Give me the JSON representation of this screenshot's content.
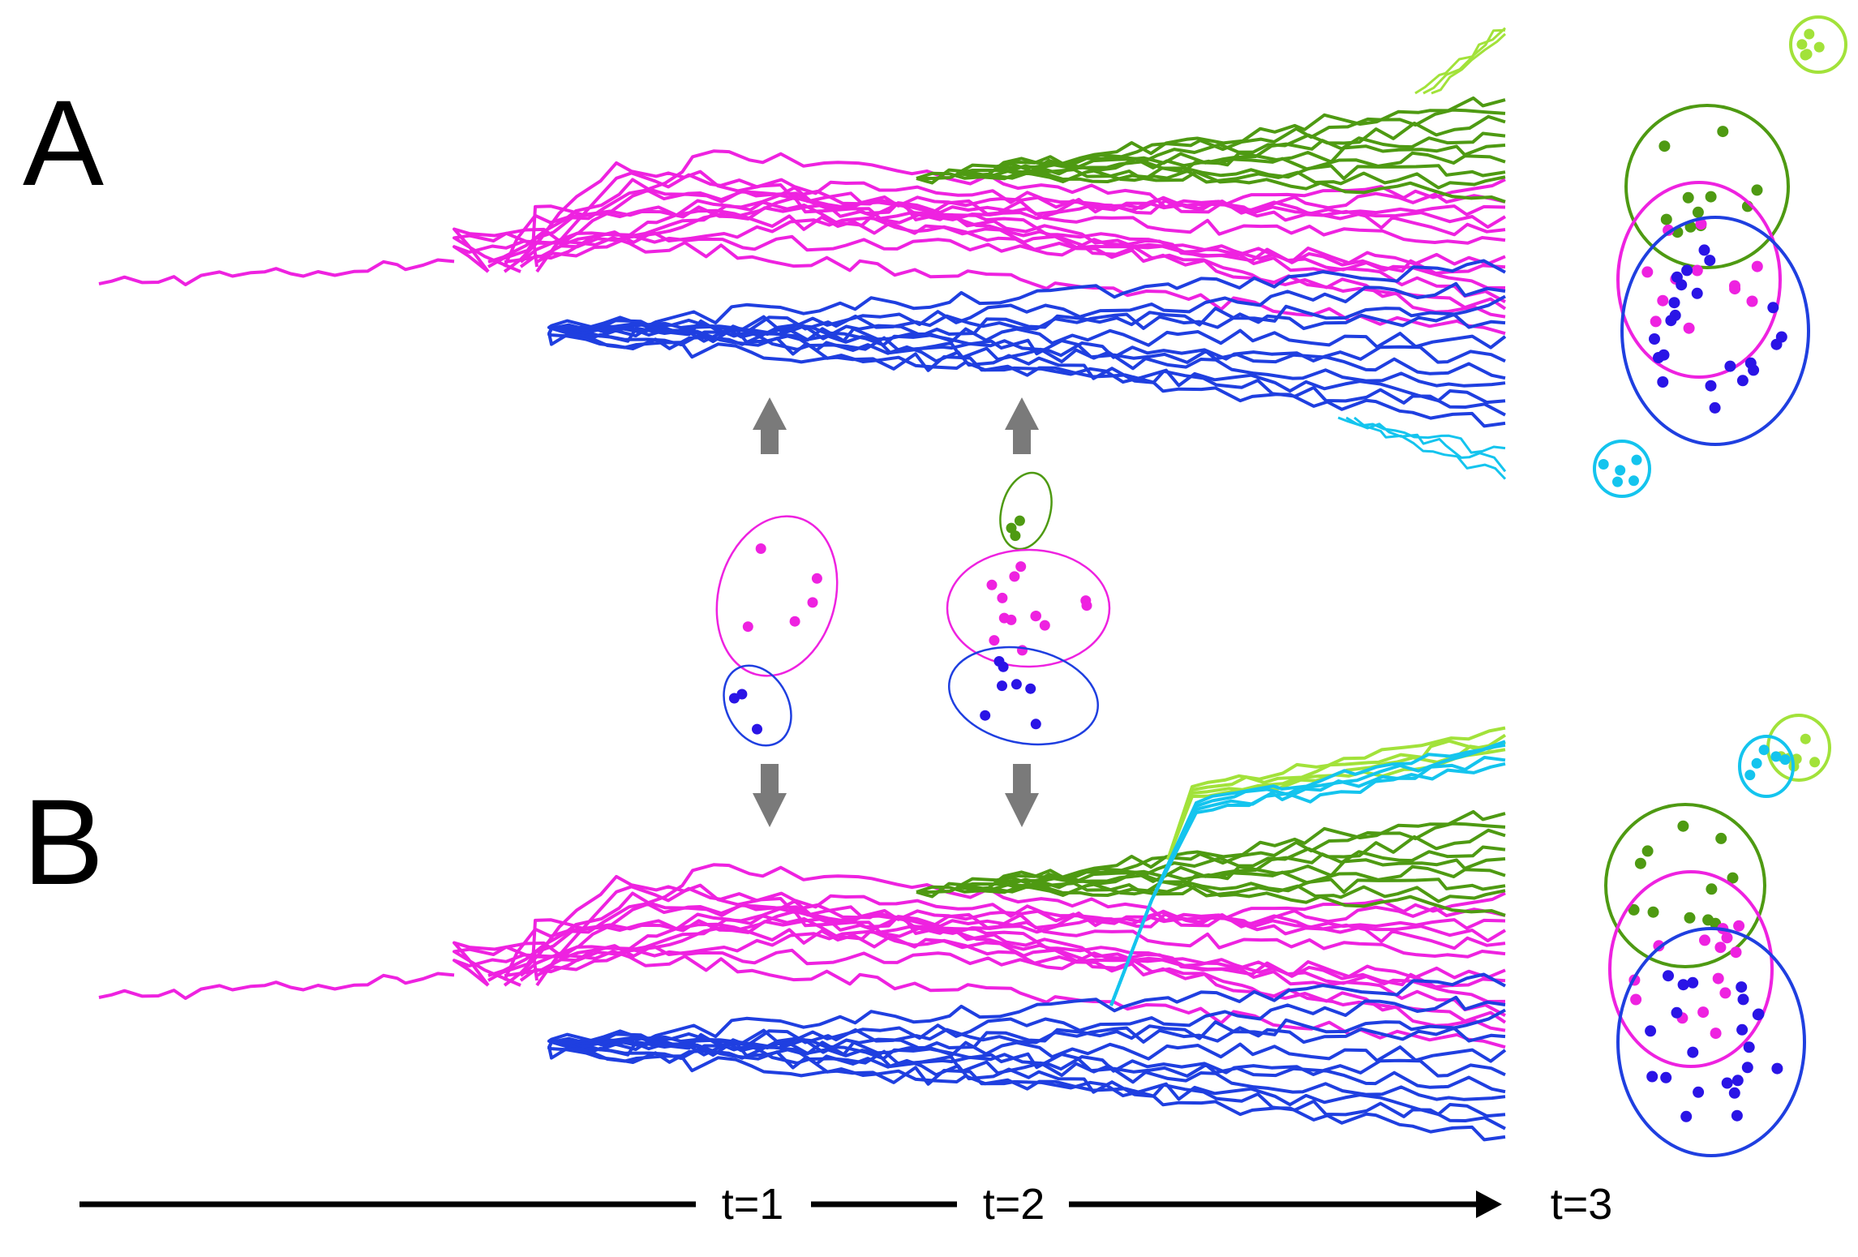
{
  "panels": [
    {
      "label": "A"
    },
    {
      "label": "B"
    }
  ],
  "timeline": {
    "labels": [
      "t=1",
      "t=2",
      "t=3"
    ]
  },
  "colors": {
    "magenta": "#ee22e0",
    "blue": "#1f3fe0",
    "blue_dot": "#2a14e6",
    "green": "#4e9a12",
    "lime": "#a2e23a",
    "cyan": "#14c4ee",
    "arrow": "#7a7a7a",
    "axis": "#000000"
  }
}
